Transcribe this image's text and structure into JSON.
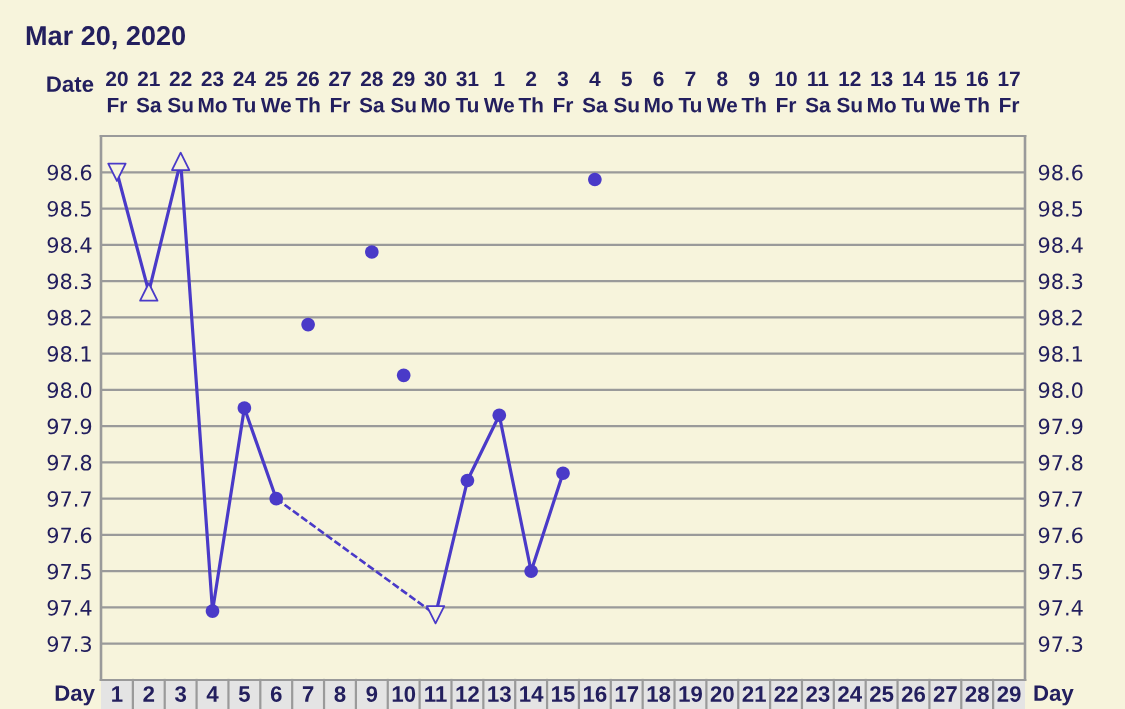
{
  "chart_data": {
    "type": "line",
    "title": "Mar 20, 2020",
    "xlabel": "Day",
    "x2label": "Date",
    "xlim": [
      0.5,
      29.5
    ],
    "xticks": [
      1,
      2,
      3,
      4,
      5,
      6,
      7,
      8,
      9,
      10,
      11,
      12,
      13,
      14,
      15,
      16,
      17,
      18,
      19,
      20,
      21,
      22,
      23,
      24,
      25,
      26,
      27,
      28,
      29
    ],
    "x2lim": [
      "2020-03-19T12:00",
      "2020-04-17T12:00"
    ],
    "x2ticks": [
      {
        "value": "2020-03-20",
        "label": "20\nFr"
      },
      {
        "value": "2020-03-21",
        "label": "21\nSa"
      },
      {
        "value": "2020-03-22",
        "label": "22\nSu"
      },
      {
        "value": "2020-03-23",
        "label": "23\nMo"
      },
      {
        "value": "2020-03-24",
        "label": "24\nTu"
      },
      {
        "value": "2020-03-25",
        "label": "25\nWe"
      },
      {
        "value": "2020-03-26",
        "label": "26\nTh"
      },
      {
        "value": "2020-03-27",
        "label": "27\nFr"
      },
      {
        "value": "2020-03-28",
        "label": "28\nSa"
      },
      {
        "value": "2020-03-29",
        "label": "29\nSu"
      },
      {
        "value": "2020-03-30",
        "label": "30\nMo"
      },
      {
        "value": "2020-03-31",
        "label": "31\nTu"
      },
      {
        "value": "2020-04-01",
        "label": "1\nWe"
      },
      {
        "value": "2020-04-02",
        "label": "2\nTh"
      },
      {
        "value": "2020-04-03",
        "label": "3\nFr"
      },
      {
        "value": "2020-04-04",
        "label": "4\nSa"
      },
      {
        "value": "2020-04-05",
        "label": "5\nSu"
      },
      {
        "value": "2020-04-06",
        "label": "6\nMo"
      },
      {
        "value": "2020-04-07",
        "label": "7\nTu"
      },
      {
        "value": "2020-04-08",
        "label": "8\nWe"
      },
      {
        "value": "2020-04-09",
        "label": "9\nTh"
      },
      {
        "value": "2020-04-10",
        "label": "10\nFr"
      },
      {
        "value": "2020-04-11",
        "label": "11\nSa"
      },
      {
        "value": "2020-04-12",
        "label": "12\nSu"
      },
      {
        "value": "2020-04-13",
        "label": "13\nMo"
      },
      {
        "value": "2020-04-14",
        "label": "14\nTu"
      },
      {
        "value": "2020-04-15",
        "label": "15\nWe"
      },
      {
        "value": "2020-04-16",
        "label": "16\nTh"
      },
      {
        "value": "2020-04-17",
        "label": "17\nFr"
      }
    ],
    "ylim": [
      97.2,
      98.7
    ],
    "yticks": [
      97.3,
      97.4,
      97.5,
      97.6,
      97.7,
      97.8,
      97.9,
      {
        "value": 98.0,
        "label": "98.0"
      },
      98.1,
      98.2,
      98.3,
      98.4,
      98.5,
      98.6
    ],
    "y2lim": [
      97.2,
      98.7
    ],
    "y2ticks": [
      97.3,
      97.4,
      97.5,
      97.6,
      97.7,
      97.8,
      97.9,
      {
        "value": 98.0,
        "label": "98.0"
      },
      98.1,
      98.2,
      98.3,
      98.4,
      98.5,
      98.6
    ],
    "grid": true,
    "series": [
      {
        "color": "#4a3ac8",
        "marker": "none",
        "line_style": "solid",
        "x": [
          1,
          2,
          3,
          4,
          5,
          6
        ],
        "values": [
          98.6,
          98.27,
          98.63,
          97.39,
          97.95,
          97.7
        ]
      },
      {
        "color": "#4a3ac8",
        "marker": "none",
        "line_style": "dashed",
        "x": [
          6,
          11
        ],
        "values": [
          97.7,
          97.38
        ]
      },
      {
        "color": "#4a3ac8",
        "marker": "none",
        "line_style": "solid",
        "x": [
          11,
          12,
          13,
          14,
          15
        ],
        "values": [
          97.38,
          97.75,
          97.93,
          97.5,
          97.77
        ]
      },
      {
        "type": "scatter",
        "color": "#4a3ac8",
        "marker": "circle",
        "x": [
          4,
          5,
          6,
          7,
          9,
          10,
          12,
          13,
          14,
          15,
          16
        ],
        "values": [
          97.39,
          97.95,
          97.7,
          98.18,
          98.38,
          98.04,
          97.75,
          97.93,
          97.5,
          97.77,
          98.58
        ]
      },
      {
        "type": "scatter",
        "color": "#4a3ac8",
        "marker": "triangle",
        "x": [
          2,
          3
        ],
        "values": [
          98.27,
          98.63
        ]
      },
      {
        "type": "scatter",
        "color": "#4a3ac8",
        "marker": "triangle_down",
        "x": [
          1,
          11
        ],
        "values": [
          98.6,
          97.38
        ]
      }
    ]
  }
}
